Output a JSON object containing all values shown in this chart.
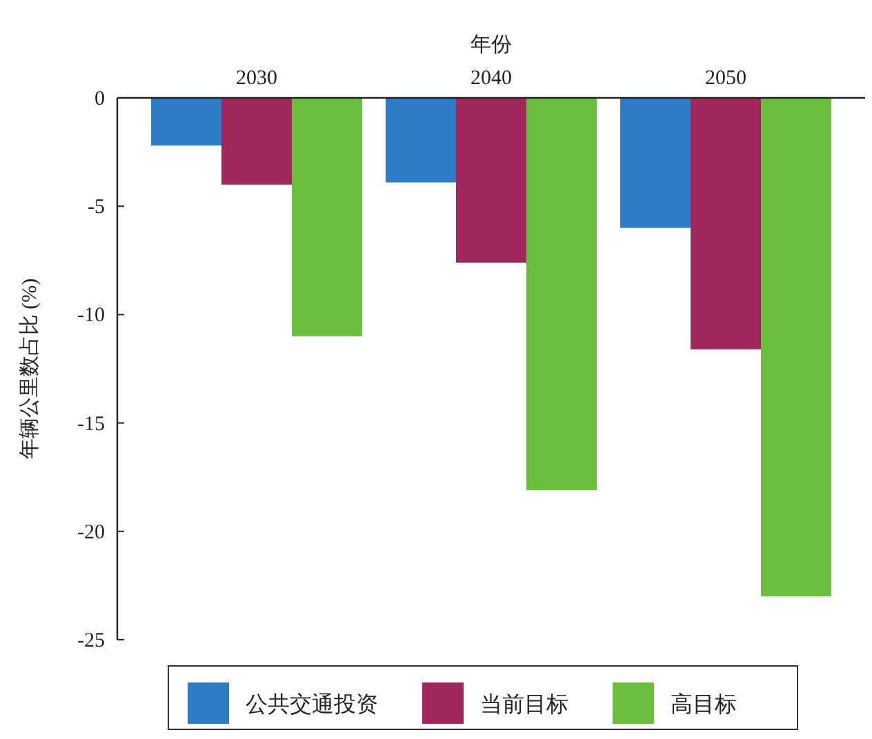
{
  "chart_data": {
    "type": "bar",
    "xlabel": "年份",
    "ylabel": "年辆公里数占比 (%)",
    "categories": [
      "2030",
      "2040",
      "2050"
    ],
    "series": [
      {
        "name": "公共交通投资",
        "color": "#2e7dc4",
        "values": [
          -2.2,
          -3.9,
          -6.0
        ]
      },
      {
        "name": "当前目标",
        "color": "#a0285f",
        "values": [
          -4.0,
          -7.6,
          -11.6
        ]
      },
      {
        "name": "高目标",
        "color": "#6cbf3e",
        "values": [
          -11.0,
          -18.1,
          -23.0
        ]
      }
    ],
    "ylim": [
      -25,
      0
    ],
    "yticks": [
      0,
      -5,
      -10,
      -15,
      -20,
      -25
    ],
    "legend": "bottom"
  }
}
